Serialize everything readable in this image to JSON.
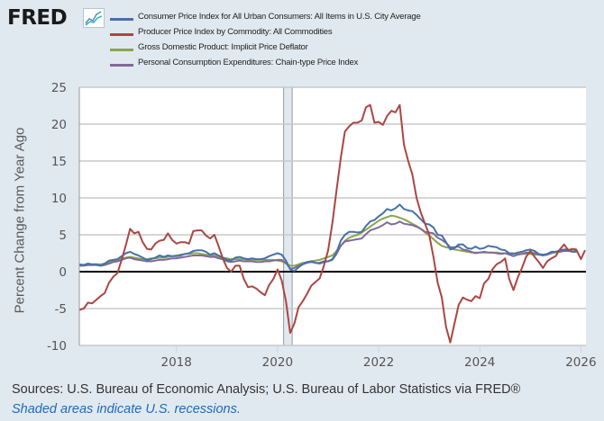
{
  "header": {
    "logo_text": "FRED",
    "logo_icon": "line-chart-icon"
  },
  "legend": [
    {
      "label": "Consumer Price Index for All Urban Consumers: All Items in U.S. City Average",
      "color": "#4572a7"
    },
    {
      "label": "Producer Price Index by Commodity: All Commodities",
      "color": "#aa4643"
    },
    {
      "label": "Gross Domestic Product: Implicit Price Deflator",
      "color": "#89a54e"
    },
    {
      "label": "Personal Consumption Expenditures: Chain-type Price Index",
      "color": "#80699b"
    }
  ],
  "footer": {
    "sources": "Sources: U.S. Bureau of Economic Analysis; U.S. Bureau of Labor Statistics via FRED®",
    "note": "Shaded areas indicate U.S. recessions."
  },
  "chart_data": {
    "type": "line",
    "ylabel": "Percent Change from Year Ago",
    "xlabel": "",
    "ylim": [
      -10,
      25
    ],
    "xlim": [
      2016.08,
      2026.1
    ],
    "yticks": [
      "25",
      "20",
      "15",
      "10",
      "5",
      "0",
      "-5",
      "-10"
    ],
    "ytick_values": [
      25,
      20,
      15,
      10,
      5,
      0,
      -5,
      -10
    ],
    "xticks": [
      "2018",
      "2020",
      "2022",
      "2024",
      "2026"
    ],
    "xtick_values": [
      2018,
      2020,
      2022,
      2024,
      2026
    ],
    "grid": true,
    "recessions": [
      [
        2020.12,
        2020.29
      ]
    ],
    "start": "2016-02",
    "series": [
      {
        "name": "Consumer Price Index for All Urban Consumers: All Items in U.S. City Average",
        "color": "#4572a7",
        "frequency": "monthly",
        "values": [
          1.0,
          0.9,
          1.1,
          1.0,
          1.0,
          0.8,
          1.1,
          1.5,
          1.6,
          1.7,
          2.1,
          2.5,
          2.7,
          2.4,
          2.2,
          1.9,
          1.6,
          1.7,
          1.9,
          2.2,
          2.0,
          2.2,
          2.1,
          2.1,
          2.2,
          2.4,
          2.5,
          2.8,
          2.9,
          2.9,
          2.7,
          2.3,
          2.5,
          2.2,
          1.9,
          1.6,
          1.5,
          1.9,
          2.0,
          1.8,
          1.7,
          1.8,
          1.7,
          1.7,
          1.8,
          2.1,
          2.3,
          2.5,
          2.3,
          1.5,
          0.3,
          0.1,
          0.6,
          1.0,
          1.3,
          1.4,
          1.2,
          1.2,
          1.4,
          1.4,
          1.7,
          2.6,
          4.2,
          5.0,
          5.4,
          5.4,
          5.3,
          5.4,
          6.2,
          6.8,
          7.0,
          7.5,
          7.9,
          8.5,
          8.3,
          8.6,
          9.1,
          8.5,
          8.3,
          8.2,
          7.7,
          7.1,
          6.5,
          6.4,
          6.0,
          5.0,
          4.9,
          4.0,
          3.0,
          3.2,
          3.7,
          3.7,
          3.2,
          3.1,
          3.4,
          3.1,
          3.2,
          3.5,
          3.4,
          3.3,
          3.0,
          2.9,
          2.5,
          2.4,
          2.6,
          2.7,
          2.9,
          3.0,
          2.8,
          2.4,
          2.3,
          2.4,
          2.7,
          2.7,
          2.9,
          3.0,
          3.0,
          2.7,
          2.7
        ]
      },
      {
        "name": "Producer Price Index by Commodity: All Commodities",
        "color": "#aa4643",
        "frequency": "monthly",
        "values": [
          -5.2,
          -5.0,
          -4.2,
          -4.3,
          -3.8,
          -3.3,
          -2.9,
          -1.5,
          -0.7,
          -0.2,
          1.6,
          3.6,
          5.8,
          5.2,
          5.4,
          4.0,
          3.1,
          3.0,
          3.8,
          4.2,
          4.3,
          5.2,
          4.3,
          3.8,
          4.0,
          4.0,
          3.8,
          5.5,
          5.6,
          5.6,
          4.9,
          4.5,
          5.0,
          3.5,
          1.8,
          0.5,
          0.0,
          0.8,
          0.8,
          -1.0,
          -2.1,
          -2.0,
          -2.3,
          -2.8,
          -3.2,
          -1.8,
          -1.0,
          0.3,
          -1.2,
          -4.0,
          -8.3,
          -7.0,
          -4.8,
          -4.0,
          -3.0,
          -1.9,
          -1.4,
          -0.9,
          0.8,
          2.9,
          6.5,
          11.0,
          15.4,
          19.0,
          19.7,
          20.2,
          20.2,
          20.5,
          22.3,
          22.6,
          20.2,
          20.3,
          19.9,
          21.1,
          21.8,
          21.6,
          22.6,
          17.2,
          15.0,
          13.2,
          10.0,
          8.0,
          6.5,
          5.0,
          2.0,
          -1.5,
          -3.5,
          -7.5,
          -9.6,
          -7.0,
          -4.5,
          -3.5,
          -3.8,
          -4.0,
          -3.3,
          -3.6,
          -1.6,
          -1.0,
          0.3,
          1.0,
          1.3,
          1.8,
          -1.0,
          -2.5,
          -0.8,
          0.5,
          2.0,
          2.8,
          2.0,
          1.3,
          0.5,
          1.4,
          1.8,
          2.1,
          3.0,
          3.7,
          2.9,
          3.1,
          2.9,
          1.7,
          2.9
        ]
      },
      {
        "name": "Gross Domestic Product: Implicit Price Deflator",
        "color": "#89a54e",
        "frequency": "quarterly",
        "values": [
          0.9,
          0.9,
          0.9,
          0.9,
          1.0,
          1.0,
          1.1,
          1.3,
          1.4,
          1.6,
          1.8,
          1.9,
          2.0,
          1.9,
          1.8,
          1.7,
          1.7,
          1.8,
          1.8,
          1.9,
          1.9,
          2.0,
          2.1,
          2.2,
          2.3,
          2.4,
          2.4,
          2.5,
          2.5,
          2.4,
          2.3,
          2.2,
          2.2,
          2.0,
          1.9,
          1.8,
          1.7,
          1.7,
          1.7,
          1.7,
          1.6,
          1.6,
          1.6,
          1.6,
          1.6,
          1.6,
          1.6,
          1.5,
          1.4,
          1.1,
          0.8,
          0.8,
          1.0,
          1.2,
          1.3,
          1.4,
          1.5,
          1.6,
          1.8,
          2.0,
          2.2,
          2.8,
          3.5,
          4.2,
          4.6,
          4.8,
          5.0,
          5.3,
          5.7,
          6.1,
          6.5,
          6.9,
          7.2,
          7.4,
          7.6,
          7.5,
          7.3,
          7.1,
          6.8,
          6.5,
          6.2,
          5.8,
          5.3,
          4.9,
          4.4,
          3.9,
          3.5,
          3.3,
          3.2,
          3.0,
          2.9,
          2.8,
          2.7,
          2.6,
          2.6,
          2.6,
          2.6,
          2.6,
          2.6,
          2.6,
          2.5,
          2.5,
          2.5,
          2.5,
          2.4,
          2.4,
          2.4,
          2.4,
          2.3,
          2.3,
          2.3,
          2.3,
          2.5,
          2.6,
          2.7,
          2.8,
          2.9,
          3.0,
          3.1
        ]
      },
      {
        "name": "Personal Consumption Expenditures: Chain-type Price Index",
        "color": "#80699b",
        "frequency": "monthly",
        "values": [
          0.8,
          0.8,
          0.9,
          0.9,
          0.9,
          0.8,
          0.9,
          1.1,
          1.3,
          1.4,
          1.6,
          1.8,
          1.9,
          1.7,
          1.6,
          1.5,
          1.4,
          1.4,
          1.5,
          1.6,
          1.6,
          1.7,
          1.8,
          1.8,
          1.9,
          2.0,
          2.1,
          2.2,
          2.2,
          2.2,
          2.1,
          2.0,
          2.0,
          1.8,
          1.7,
          1.4,
          1.3,
          1.4,
          1.5,
          1.4,
          1.4,
          1.4,
          1.3,
          1.3,
          1.4,
          1.4,
          1.5,
          1.6,
          1.6,
          1.2,
          0.4,
          0.5,
          0.8,
          1.0,
          1.2,
          1.3,
          1.2,
          1.1,
          1.3,
          1.4,
          1.6,
          2.4,
          3.5,
          4.1,
          4.2,
          4.3,
          4.4,
          4.5,
          5.1,
          5.6,
          5.8,
          6.0,
          6.3,
          6.7,
          6.4,
          6.5,
          6.8,
          6.5,
          6.4,
          6.3,
          6.1,
          5.8,
          5.4,
          5.3,
          5.2,
          4.6,
          4.3,
          3.9,
          3.3,
          3.3,
          3.4,
          3.0,
          2.9,
          2.7,
          2.5,
          2.6,
          2.7,
          2.6,
          2.6,
          2.5,
          2.4,
          2.5,
          2.3,
          2.1,
          2.3,
          2.4,
          2.6,
          2.6,
          2.5,
          2.3,
          2.2,
          2.3,
          2.6,
          2.7,
          2.7,
          2.8,
          2.8,
          2.7,
          2.8
        ]
      }
    ]
  }
}
